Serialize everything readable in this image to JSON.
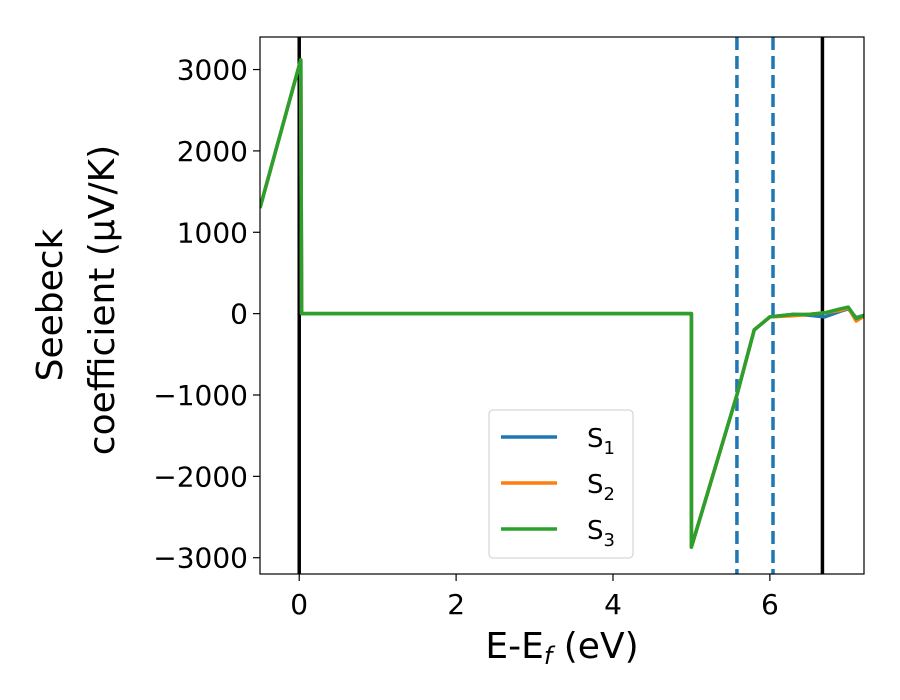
{
  "chart_data": {
    "type": "line",
    "title": "",
    "xlabel": "E-E",
    "xlabel_sub": "f",
    "xlabel_unit": "(eV)",
    "ylabel_line1": "Seebeck",
    "ylabel_line2": "coefficient  (μV/K)",
    "xlim": [
      -0.5,
      7.2
    ],
    "ylim": [
      -3200,
      3400
    ],
    "xticks": [
      0,
      2,
      4,
      6
    ],
    "xtick_labels": [
      "0",
      "2",
      "4",
      "6"
    ],
    "yticks": [
      3000,
      2000,
      1000,
      0,
      -1000,
      -2000,
      -3000
    ],
    "ytick_labels": [
      "3000",
      "2000",
      "1000",
      "0",
      "−1000",
      "−2000",
      "−3000"
    ],
    "grid": false,
    "legend_position": "lower-center",
    "vertical_lines": [
      {
        "x": 0.0,
        "style": "solid",
        "color": "#000000"
      },
      {
        "x": 5.58,
        "style": "dashed",
        "color": "#1f77b4"
      },
      {
        "x": 6.04,
        "style": "dashed",
        "color": "#1f77b4"
      },
      {
        "x": 6.67,
        "style": "solid",
        "color": "#000000"
      }
    ],
    "series": [
      {
        "name": "S",
        "sub": "1",
        "color": "#1f77b4",
        "x": [
          -0.5,
          0.0,
          0.02,
          0.03,
          5.0,
          5.0,
          5.58,
          5.8,
          6.0,
          6.3,
          6.5,
          6.7,
          6.9,
          7.0,
          7.1,
          7.2
        ],
        "y": [
          1300,
          3050,
          3120,
          0,
          0,
          -2870,
          -1000,
          -200,
          -40,
          -10,
          -20,
          -40,
          30,
          60,
          -50,
          -20
        ]
      },
      {
        "name": "S",
        "sub": "2",
        "color": "#ff7f0e",
        "x": [
          -0.5,
          0.0,
          0.02,
          0.03,
          5.0,
          5.0,
          5.58,
          5.8,
          6.0,
          6.3,
          6.5,
          6.7,
          6.9,
          7.0,
          7.1,
          7.2
        ],
        "y": [
          1300,
          3050,
          3120,
          0,
          0,
          -2870,
          -1000,
          -200,
          -40,
          -25,
          -10,
          10,
          40,
          70,
          -90,
          -30
        ]
      },
      {
        "name": "S",
        "sub": "3",
        "color": "#2ca02c",
        "x": [
          -0.5,
          0.0,
          0.02,
          0.03,
          5.0,
          5.0,
          5.58,
          5.8,
          6.0,
          6.3,
          6.5,
          6.7,
          6.9,
          7.0,
          7.1,
          7.2
        ],
        "y": [
          1300,
          3050,
          3120,
          0,
          0,
          -2870,
          -1000,
          -200,
          -40,
          -10,
          -10,
          10,
          60,
          80,
          -60,
          -20
        ]
      }
    ]
  }
}
